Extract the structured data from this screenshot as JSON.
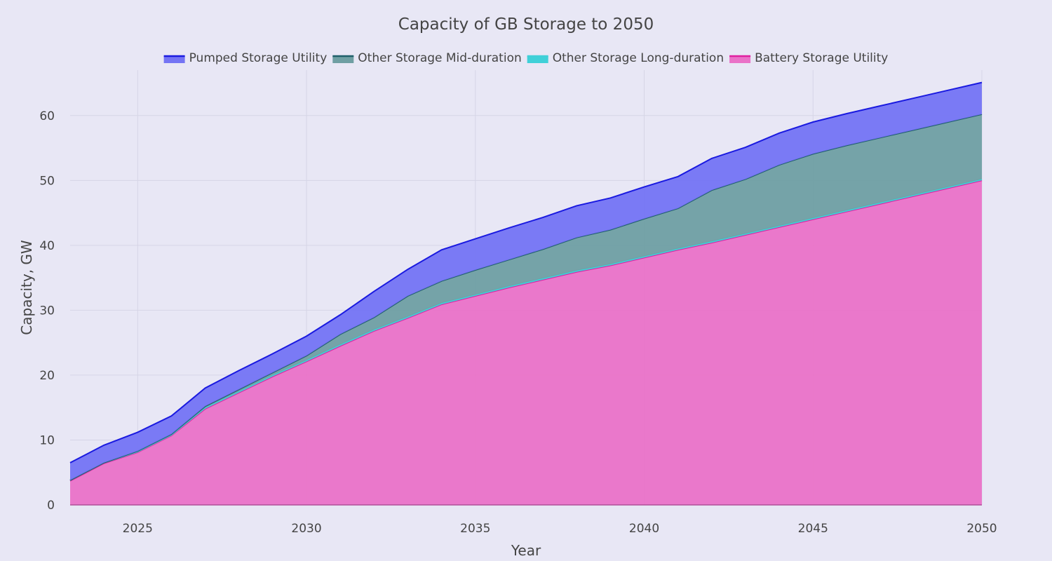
{
  "chart_data": {
    "type": "area",
    "stacked": true,
    "title": "Capacity of GB Storage to 2050",
    "xlabel": "Year",
    "ylabel": "Capacity, GW",
    "xlim": [
      2023,
      2050
    ],
    "ylim": [
      0,
      67
    ],
    "x_ticks": [
      2025,
      2030,
      2035,
      2040,
      2045,
      2050
    ],
    "y_ticks": [
      0,
      10,
      20,
      30,
      40,
      50,
      60
    ],
    "grid": true,
    "legend_position": "top-center",
    "x": [
      2023,
      2024,
      2025,
      2026,
      2027,
      2028,
      2029,
      2030,
      2031,
      2032,
      2033,
      2034,
      2035,
      2036,
      2037,
      2038,
      2039,
      2040,
      2041,
      2042,
      2043,
      2044,
      2045,
      2046,
      2047,
      2048,
      2049,
      2050
    ],
    "series": [
      {
        "name": "Battery Storage Utility",
        "line_color": "#e020a0",
        "fill_color": "#ea72c8",
        "values": [
          3.7,
          6.4,
          8.1,
          10.7,
          14.8,
          17.3,
          19.8,
          22.1,
          24.5,
          26.8,
          28.8,
          30.9,
          32.2,
          33.5,
          34.7,
          35.9,
          36.9,
          38.1,
          39.3,
          40.4,
          41.6,
          42.8,
          44.0,
          45.2,
          46.4,
          47.6,
          48.8,
          50.0
        ]
      },
      {
        "name": "Other Storage Long-duration",
        "line_color": "#40d0d8",
        "fill_color": "#40d0d8",
        "values": [
          0.1,
          0.1,
          0.1,
          0.1,
          0.2,
          0.2,
          0.2,
          0.2,
          0.2,
          0.2,
          0.2,
          0.2,
          0.2,
          0.2,
          0.2,
          0.2,
          0.2,
          0.2,
          0.2,
          0.2,
          0.2,
          0.2,
          0.2,
          0.2,
          0.2,
          0.2,
          0.2,
          0.2
        ]
      },
      {
        "name": "Other Storage Mid-duration",
        "line_color": "#1f5f6a",
        "fill_color": "#6f9fa3",
        "values": [
          0.0,
          0.0,
          0.1,
          0.1,
          0.2,
          0.3,
          0.4,
          0.7,
          1.6,
          1.9,
          3.2,
          3.4,
          3.8,
          4.1,
          4.5,
          5.1,
          5.3,
          5.8,
          6.2,
          7.9,
          8.4,
          9.4,
          9.9,
          10.0,
          10.0,
          10.0,
          10.0,
          10.0
        ]
      },
      {
        "name": "Pumped Storage Utility",
        "line_color": "#1a1ae0",
        "fill_color": "#7474f4",
        "values": [
          2.7,
          2.7,
          2.9,
          2.8,
          2.8,
          2.9,
          2.9,
          3.0,
          3.0,
          4.0,
          4.1,
          4.8,
          4.8,
          4.9,
          4.9,
          4.9,
          4.9,
          4.9,
          4.9,
          4.9,
          4.9,
          4.9,
          4.9,
          4.9,
          4.9,
          4.9,
          4.9,
          4.9
        ]
      }
    ],
    "legend_order": [
      "Pumped Storage Utility",
      "Other Storage Mid-duration",
      "Other Storage Long-duration",
      "Battery Storage Utility"
    ]
  }
}
